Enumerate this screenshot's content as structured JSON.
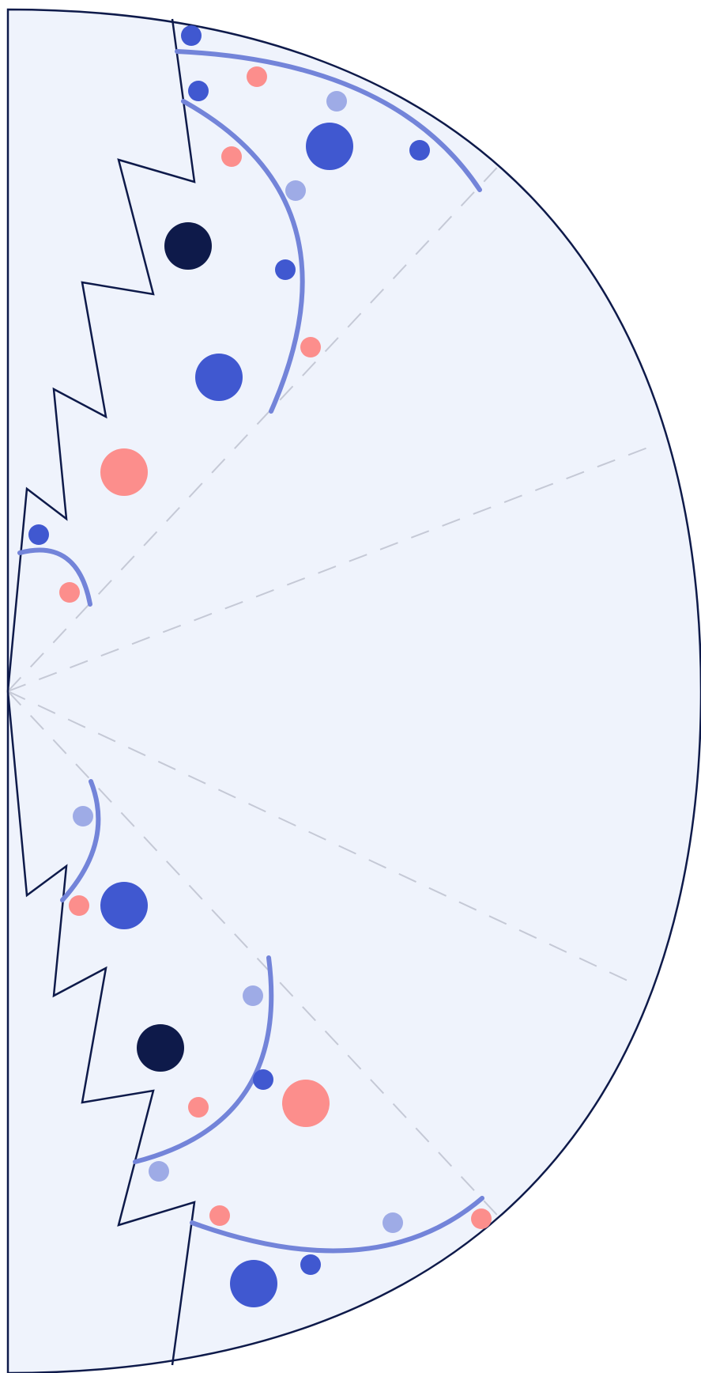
{
  "colors": {
    "background": "#ffffff",
    "fill": "#eff3fc",
    "outline": "#0e1a4a",
    "arc": "#7384d9",
    "guide": "#c5c9d6",
    "dot_blue": "#4058d0",
    "dot_light": "#9eabe6",
    "dot_salmon": "#fc8e8c",
    "dot_navy": "#0e1a4a"
  },
  "dots": [
    {
      "kind": "blue"
    },
    {
      "kind": "salmon"
    },
    {
      "kind": "blue"
    },
    {
      "kind": "light"
    },
    {
      "kind": "blue"
    },
    {
      "kind": "blue"
    },
    {
      "kind": "salmon"
    },
    {
      "kind": "light"
    },
    {
      "kind": "navy"
    },
    {
      "kind": "blue"
    },
    {
      "kind": "salmon"
    },
    {
      "kind": "blue"
    },
    {
      "kind": "salmon"
    },
    {
      "kind": "blue"
    },
    {
      "kind": "salmon"
    },
    {
      "kind": "light"
    },
    {
      "kind": "salmon"
    },
    {
      "kind": "blue"
    },
    {
      "kind": "light"
    },
    {
      "kind": "navy"
    },
    {
      "kind": "blue"
    },
    {
      "kind": "salmon"
    },
    {
      "kind": "salmon"
    },
    {
      "kind": "light"
    },
    {
      "kind": "light"
    },
    {
      "kind": "salmon"
    },
    {
      "kind": "salmon"
    },
    {
      "kind": "blue"
    },
    {
      "kind": "blue"
    }
  ]
}
